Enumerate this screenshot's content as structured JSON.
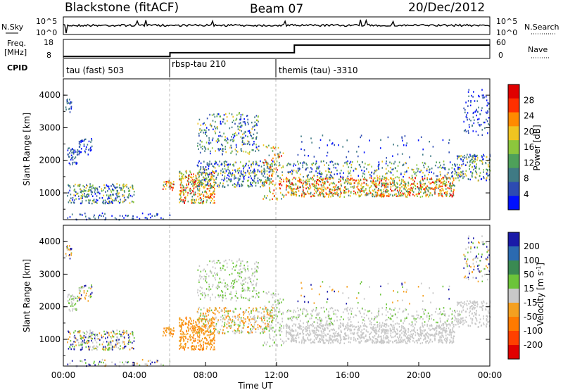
{
  "header": {
    "station": "Blackstone (fitACF)",
    "beam": "Beam 07",
    "date": "20/Dec/2012"
  },
  "chart_data": [
    {
      "type": "line",
      "panel": "noise",
      "left_label": "N.Sky",
      "right_label": "N.Search",
      "left_ticks": [
        "10^5",
        "10^0"
      ],
      "right_ticks": [
        "10^5",
        "10^0"
      ]
    },
    {
      "type": "line",
      "panel": "freq-nave",
      "left_label_top": "Freq.",
      "left_label_unit": "[MHz]",
      "right_label": "Nave",
      "left_ticks": [
        18,
        8
      ],
      "right_ticks": [
        60,
        0
      ],
      "freq_steps": [
        {
          "start": "00:00",
          "end": "06:00",
          "mhz": 9
        },
        {
          "start": "06:00",
          "end": "13:00",
          "mhz": 11
        },
        {
          "start": "13:00",
          "end": "24:00",
          "mhz": 15
        }
      ]
    },
    {
      "type": "table",
      "panel": "cpid",
      "label": "CPID",
      "segments": [
        {
          "start": "00:00",
          "name": "tau (fast) 503"
        },
        {
          "start": "06:00",
          "name": "rbsp-tau 210"
        },
        {
          "start": "12:00",
          "name": "themis (tau) -3310"
        }
      ]
    },
    {
      "type": "heatmap",
      "panel": "power",
      "ylabel": "Slant Range [km]",
      "yticks": [
        1000,
        2000,
        3000,
        4000
      ],
      "ylim": [
        180,
        4500
      ],
      "colorbar_label": "Power [dB]",
      "colorbar_ticks": [
        4,
        8,
        12,
        16,
        20,
        24,
        28
      ],
      "colorbar_colors": [
        "#0010ff",
        "#2d4bb2",
        "#3f7a84",
        "#4ea05a",
        "#8cc63c",
        "#f0c420",
        "#ff8a00",
        "#ff3000",
        "#e00000"
      ]
    },
    {
      "type": "heatmap",
      "panel": "velocity",
      "ylabel": "Slant Range [km]",
      "yticks": [
        1000,
        2000,
        3000,
        4000
      ],
      "ylim": [
        180,
        4500
      ],
      "colorbar_label": "Velocity [m s^-1]",
      "colorbar_ticks": [
        200,
        100,
        50,
        15,
        -15,
        -50,
        -100,
        -200
      ],
      "colorbar_colors": [
        "#1a1aa8",
        "#2b6ab0",
        "#3a8a52",
        "#6cc43a",
        "#c8c8c8",
        "#f4a020",
        "#ff7a00",
        "#ff4000",
        "#e00000"
      ],
      "xlabel": "Time UT",
      "xticks": [
        "00:00",
        "04:00",
        "08:00",
        "12:00",
        "16:00",
        "20:00",
        "00:00"
      ]
    }
  ]
}
